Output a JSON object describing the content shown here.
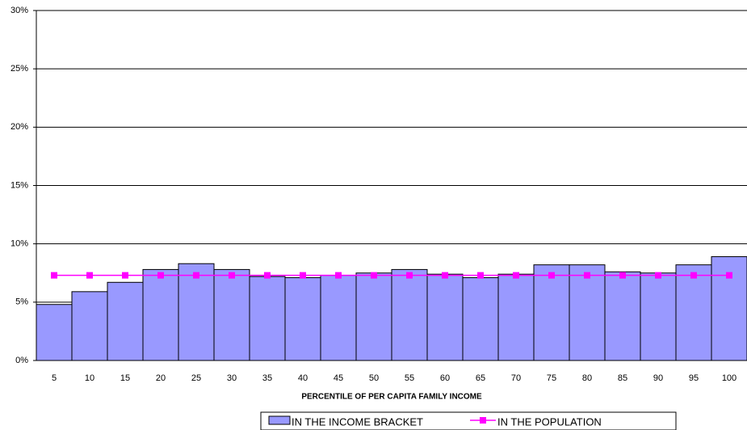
{
  "chart_data": {
    "type": "bar",
    "x_label": "PERCENTILE OF PER CAPITA FAMILY INCOME",
    "categories": [
      "5",
      "10",
      "15",
      "20",
      "25",
      "30",
      "35",
      "40",
      "45",
      "50",
      "55",
      "60",
      "65",
      "70",
      "75",
      "80",
      "85",
      "90",
      "95",
      "100"
    ],
    "series": [
      {
        "name": "IN THE INCOME BRACKET",
        "type": "bar",
        "color": "#9999ff",
        "values": [
          4.8,
          5.9,
          6.7,
          7.8,
          8.3,
          7.8,
          7.2,
          7.1,
          7.3,
          7.5,
          7.8,
          7.4,
          7.1,
          7.4,
          8.2,
          8.2,
          7.6,
          7.5,
          8.2,
          8.9
        ]
      },
      {
        "name": "IN THE POPULATION",
        "type": "line",
        "color": "#ff00ff",
        "values": [
          7.3,
          7.3,
          7.3,
          7.3,
          7.3,
          7.3,
          7.3,
          7.3,
          7.3,
          7.3,
          7.3,
          7.3,
          7.3,
          7.3,
          7.3,
          7.3,
          7.3,
          7.3,
          7.3,
          7.3
        ]
      }
    ],
    "ylim": [
      0,
      30
    ],
    "yticks": [
      {
        "value": 0,
        "label": "0%"
      },
      {
        "value": 5,
        "label": "5%"
      },
      {
        "value": 10,
        "label": "10%"
      },
      {
        "value": 15,
        "label": "15%"
      },
      {
        "value": 20,
        "label": "20%"
      },
      {
        "value": 25,
        "label": "25%"
      },
      {
        "value": 30,
        "label": "30%"
      }
    ],
    "grid": true
  }
}
